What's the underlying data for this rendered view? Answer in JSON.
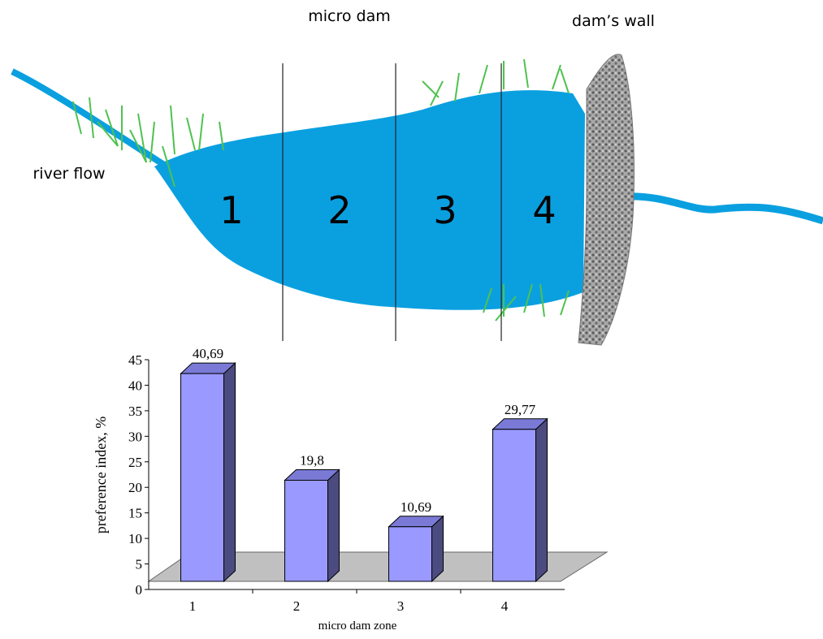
{
  "diagram": {
    "title": "micro dam",
    "wall_label": "dam’s wall",
    "flow_label": "river flow",
    "zones": [
      "1",
      "2",
      "3",
      "4"
    ]
  },
  "chart_data": {
    "type": "bar3d",
    "y_label": "preference index, %",
    "x_label": "micro dam zone",
    "categories": [
      "1",
      "2",
      "3",
      "4"
    ],
    "values": [
      40.69,
      19.8,
      10.69,
      29.77
    ],
    "value_labels": [
      "40,69",
      "19,8",
      "10,69",
      "29,77"
    ],
    "color": "#9999ff",
    "side_color": "#4b4b80",
    "top_color": "#7a7ad6",
    "floor_color": "#c0c0c0",
    "ylim": [
      0,
      45
    ],
    "yticks": [
      0,
      5,
      10,
      15,
      20,
      25,
      30,
      35,
      40,
      45
    ]
  }
}
